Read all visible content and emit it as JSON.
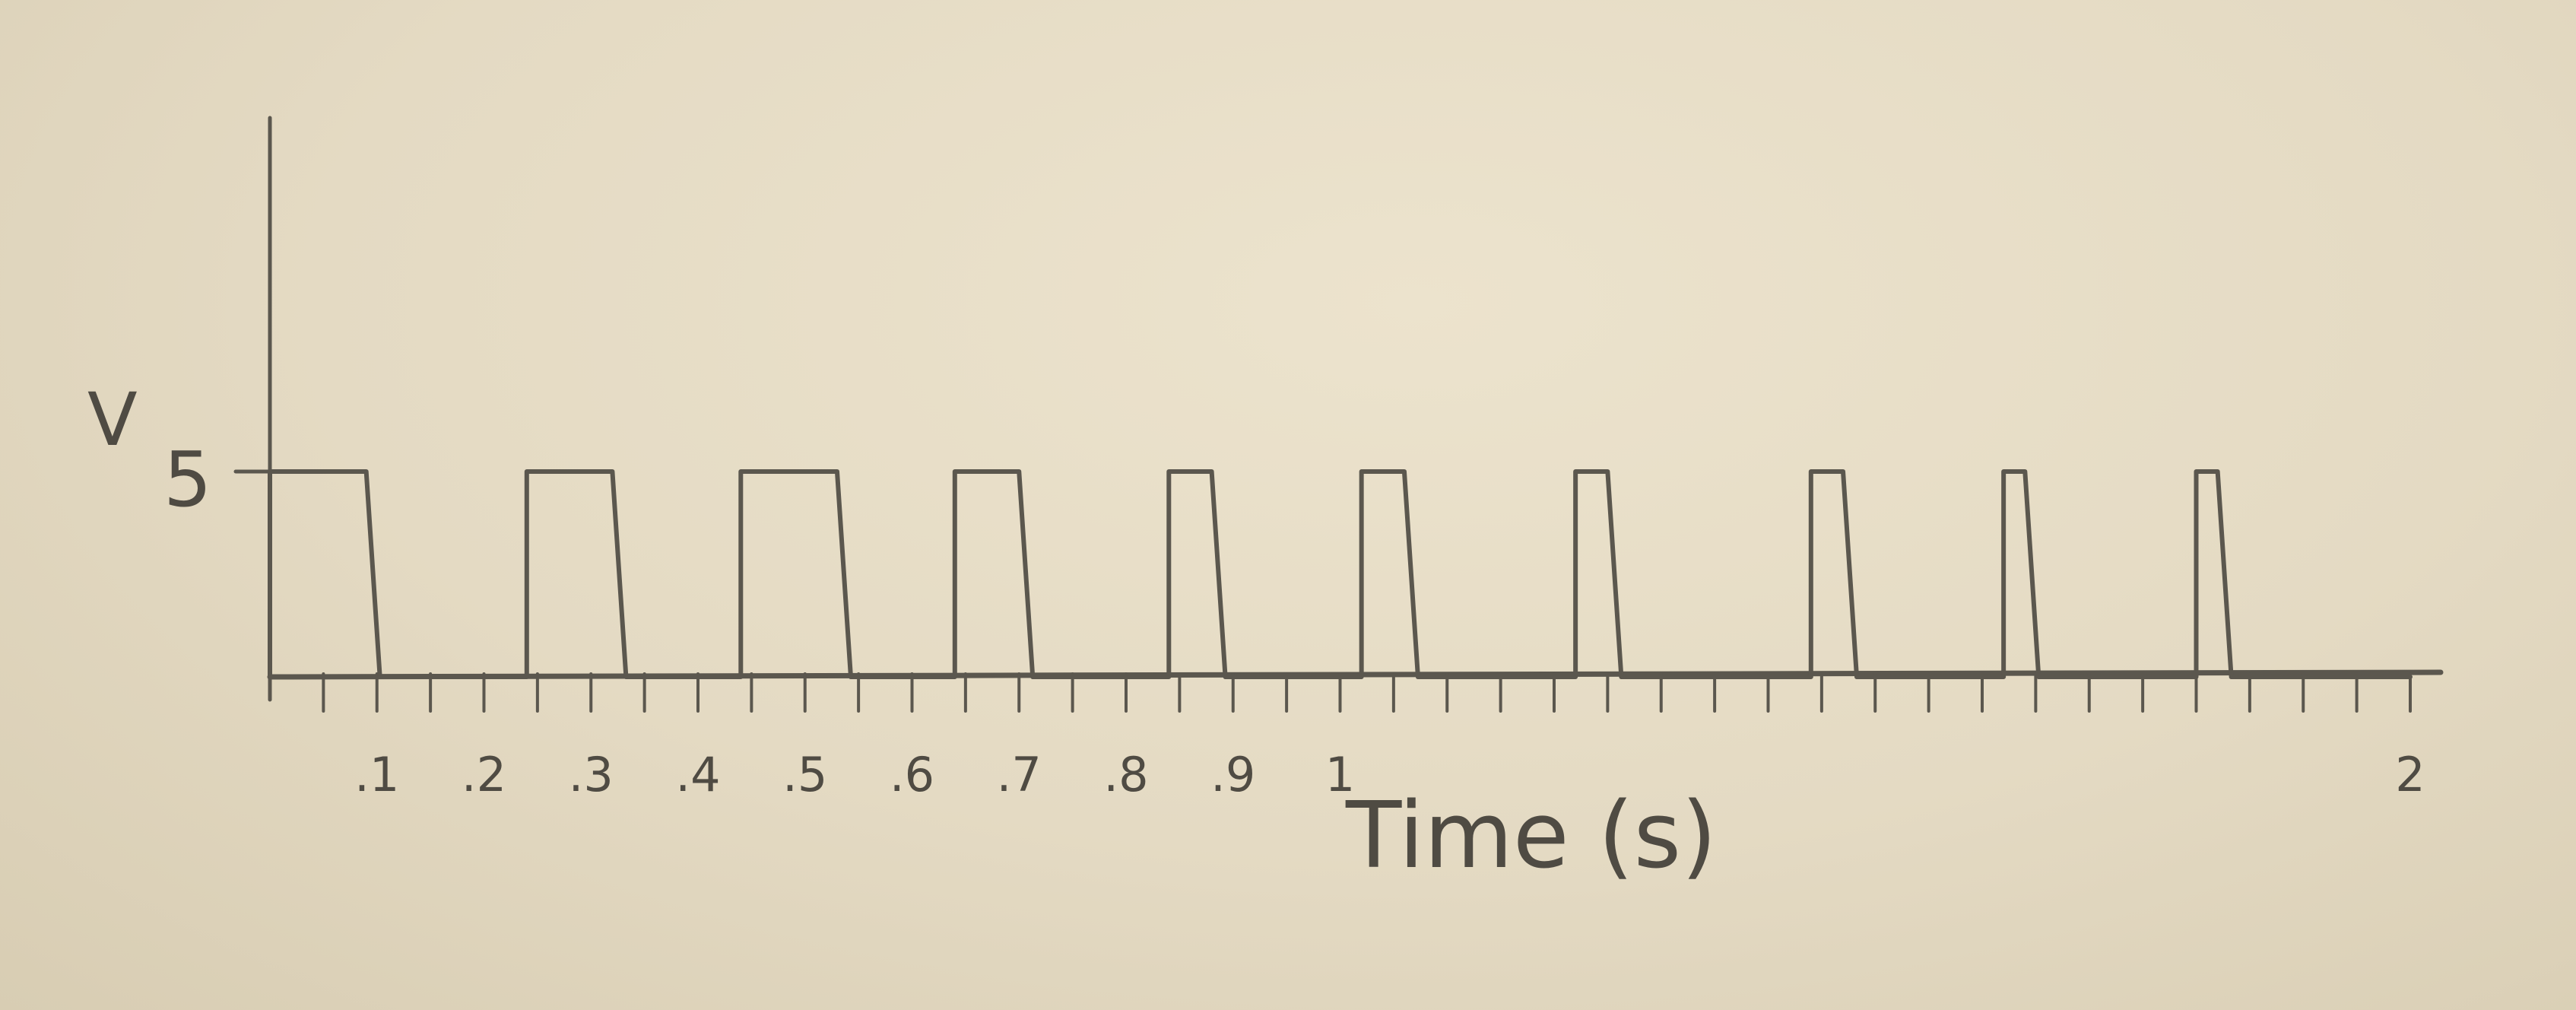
{
  "chart_data": {
    "type": "line",
    "step": true,
    "title": "",
    "xlabel": "Time (s)",
    "ylabel": "V",
    "xlim": [
      0,
      2
    ],
    "ylim": [
      0,
      5
    ],
    "y_ticks": [
      {
        "value": 5,
        "label": "5"
      }
    ],
    "x_ticks": [
      {
        "value": 0.1,
        "label": ".1"
      },
      {
        "value": 0.2,
        "label": ".2"
      },
      {
        "value": 0.3,
        "label": ".3"
      },
      {
        "value": 0.4,
        "label": ".4"
      },
      {
        "value": 0.5,
        "label": ".5"
      },
      {
        "value": 0.6,
        "label": ".6"
      },
      {
        "value": 0.7,
        "label": ".7"
      },
      {
        "value": 0.8,
        "label": ".8"
      },
      {
        "value": 0.9,
        "label": ".9"
      },
      {
        "value": 1.0,
        "label": "1"
      },
      {
        "value": 2.0,
        "label": "2"
      }
    ],
    "series": [
      {
        "pulses": [
          {
            "start": 0.0,
            "end": 0.09,
            "value": 5
          },
          {
            "start": 0.24,
            "end": 0.32,
            "value": 5
          },
          {
            "start": 0.44,
            "end": 0.53,
            "value": 5
          },
          {
            "start": 0.64,
            "end": 0.7,
            "value": 5
          },
          {
            "start": 0.84,
            "end": 0.88,
            "value": 5
          },
          {
            "start": 1.02,
            "end": 1.06,
            "value": 5
          },
          {
            "start": 1.22,
            "end": 1.25,
            "value": 5
          },
          {
            "start": 1.44,
            "end": 1.47,
            "value": 5
          },
          {
            "start": 1.62,
            "end": 1.64,
            "value": 5
          },
          {
            "start": 1.8,
            "end": 1.82,
            "value": 5
          }
        ]
      }
    ],
    "grid": false,
    "legend": "none",
    "colors": {
      "pencil": "#5b574e",
      "paper": "#e3d9c2"
    }
  }
}
